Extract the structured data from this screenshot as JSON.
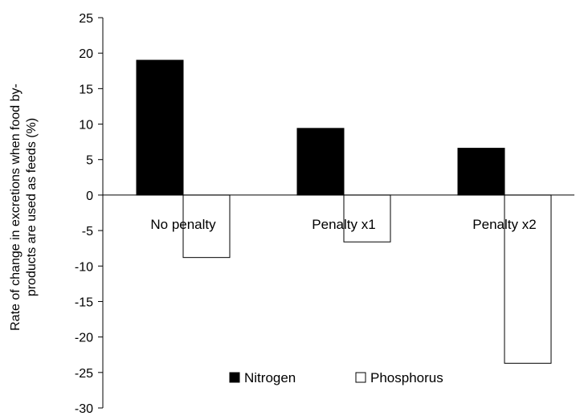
{
  "chart_data": {
    "type": "bar",
    "categories": [
      "No penalty",
      "Penalty x1",
      "Penalty x2"
    ],
    "series": [
      {
        "name": "Nitrogen",
        "values": [
          19,
          9.4,
          6.6
        ],
        "fill": "#000000",
        "stroke": "#000000"
      },
      {
        "name": "Phosphorus",
        "values": [
          -8.8,
          -6.6,
          -23.7
        ],
        "fill": "#ffffff",
        "stroke": "#000000"
      }
    ],
    "ylim": [
      -30,
      25
    ],
    "yticks": [
      "25",
      "20",
      "15",
      "10",
      "5",
      "0",
      "-5",
      "-10",
      "-15",
      "-20",
      "-25",
      "-30"
    ],
    "ylabel_line1": "Rate of change in excretions when food by-",
    "ylabel_line2": "products are used as feeds (%)",
    "xlabel": "",
    "title": "",
    "grid": false,
    "legend_position": "bottom-center"
  }
}
